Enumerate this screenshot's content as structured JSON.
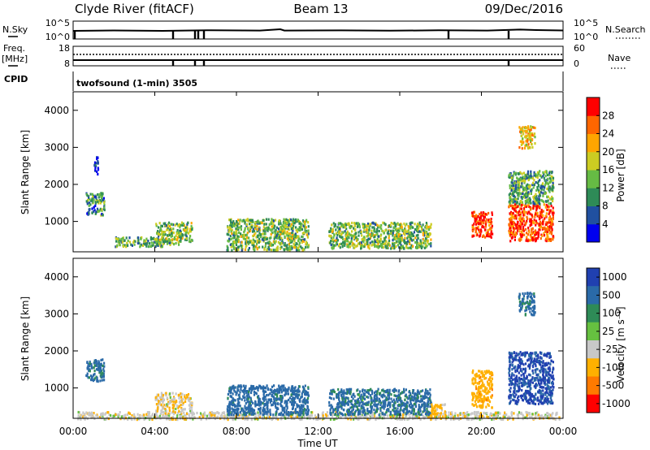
{
  "header": {
    "station": "Clyde River (fitACF)",
    "beam": "Beam 13",
    "date": "09/Dec/2016"
  },
  "strips": {
    "nsky_label": "N.Sky",
    "nsky_ticks": [
      "10^5",
      "10^0"
    ],
    "nsearch_label": "N.Search",
    "nsearch_ticks": [
      "10^5",
      "10^0"
    ],
    "freq_label": "Freq.",
    "freq_unit": "[MHz]",
    "freq_ticks": [
      "18",
      "8"
    ],
    "nave_label": "Nave",
    "nave_ticks": [
      "60",
      "0"
    ],
    "cpid_label": "CPID",
    "cpid_value": "twofsound (1-min) 3505"
  },
  "colors": {
    "power_scale": [
      "#0000ee",
      "#2050a0",
      "#2e8b57",
      "#66bb44",
      "#cccc22",
      "#ffa500",
      "#ff6600",
      "#ff0000"
    ],
    "velocity_scale": [
      "#2040b0",
      "#2a6aa8",
      "#2e8b57",
      "#66c040",
      "#c8c8c8",
      "#ffb000",
      "#ff7a00",
      "#ff0000"
    ]
  },
  "chart_data": [
    {
      "type": "heatmap",
      "quantity": "Power",
      "ylabel": "Slant Range [km]",
      "ylim": [
        180,
        4500
      ],
      "yticks": [
        "1000",
        "2000",
        "3000",
        "4000"
      ],
      "xlim_hours": [
        0,
        24
      ],
      "colorbar_label": "Power [dB]",
      "colorbar_ticks": [
        "4",
        "8",
        "12",
        "16",
        "20",
        "24",
        "28"
      ],
      "colorbar_range": [
        0,
        32
      ],
      "echo_regions": [
        {
          "t0": 0.6,
          "t1": 1.5,
          "r0": 1200,
          "r1": 1800,
          "level": 10
        },
        {
          "t0": 1.0,
          "t1": 1.2,
          "r0": 2300,
          "r1": 2800,
          "level": 6
        },
        {
          "t0": 2.0,
          "t1": 4.5,
          "r0": 350,
          "r1": 600,
          "level": 12
        },
        {
          "t0": 4.0,
          "t1": 5.8,
          "r0": 400,
          "r1": 1000,
          "level": 14
        },
        {
          "t0": 7.5,
          "t1": 11.5,
          "r0": 250,
          "r1": 1100,
          "level": 14
        },
        {
          "t0": 12.5,
          "t1": 17.5,
          "r0": 300,
          "r1": 1000,
          "level": 14
        },
        {
          "t0": 19.5,
          "t1": 20.5,
          "r0": 600,
          "r1": 1300,
          "level": 28
        },
        {
          "t0": 21.3,
          "t1": 23.5,
          "r0": 500,
          "r1": 1500,
          "level": 28
        },
        {
          "t0": 21.3,
          "t1": 23.5,
          "r0": 1500,
          "r1": 2400,
          "level": 12
        },
        {
          "t0": 21.8,
          "t1": 22.6,
          "r0": 3000,
          "r1": 3600,
          "level": 20
        }
      ]
    },
    {
      "type": "heatmap",
      "quantity": "Velocity",
      "ylabel": "Slant Range [km]",
      "ylim": [
        180,
        4500
      ],
      "yticks": [
        "1000",
        "2000",
        "3000",
        "4000"
      ],
      "xlabel": "Time UT",
      "xticks": [
        "00:00",
        "04:00",
        "08:00",
        "12:00",
        "16:00",
        "20:00",
        "00:00"
      ],
      "xlim_hours": [
        0,
        24
      ],
      "colorbar_label": "Velocity [m s⁻¹]",
      "colorbar_ticks": [
        "1000",
        "500",
        "100",
        "25",
        "-25",
        "-100",
        "-500",
        "-1000"
      ],
      "echo_regions": [
        {
          "t0": 0.6,
          "t1": 1.5,
          "r0": 1200,
          "r1": 1800,
          "velocity": 150
        },
        {
          "t0": 0.2,
          "t1": 23.8,
          "r0": 180,
          "r1": 380,
          "velocity": -60
        },
        {
          "t0": 4.0,
          "t1": 5.8,
          "r0": 400,
          "r1": 900,
          "velocity": -80
        },
        {
          "t0": 7.5,
          "t1": 11.5,
          "r0": 300,
          "r1": 1100,
          "velocity": 200
        },
        {
          "t0": 12.5,
          "t1": 17.5,
          "r0": 300,
          "r1": 1000,
          "velocity": 150
        },
        {
          "t0": 17.5,
          "t1": 18.2,
          "r0": 250,
          "r1": 600,
          "velocity": -150
        },
        {
          "t0": 19.5,
          "t1": 20.5,
          "r0": 500,
          "r1": 1500,
          "velocity": -300
        },
        {
          "t0": 21.3,
          "t1": 23.5,
          "r0": 600,
          "r1": 2000,
          "velocity": 600
        },
        {
          "t0": 21.8,
          "t1": 22.6,
          "r0": 3000,
          "r1": 3600,
          "velocity": 150
        }
      ]
    }
  ]
}
